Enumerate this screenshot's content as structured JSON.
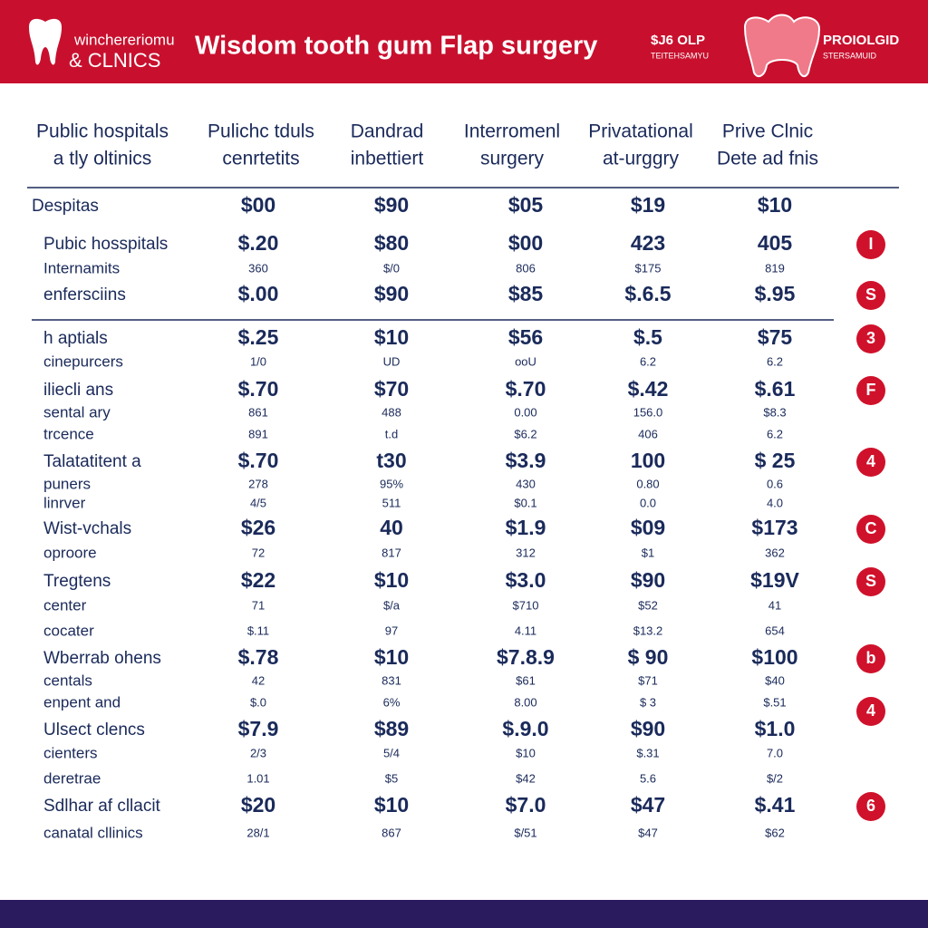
{
  "header": {
    "logo_line1": "winchereriomu",
    "logo_line2": "& CLNICS",
    "title": "Wisdom tooth gum Flap surgery",
    "badge_left": [
      "$J6 OLP",
      "TEITEHSAMYU"
    ],
    "badge_right": [
      "PROIOLGID",
      "STERSAMUID"
    ]
  },
  "table": {
    "columns": [
      [
        "Public hospitals",
        "a tly oltinics"
      ],
      [
        "Pulichc tduls",
        "cenrtetits"
      ],
      [
        "Dandrad",
        "inbettiert"
      ],
      [
        "Interromenl",
        "surgery"
      ],
      [
        "Privatational",
        "at-urggry"
      ],
      [
        "Prive Clnic",
        "Dete ad fnis"
      ]
    ],
    "rows": [
      {
        "label": "Despitas",
        "cells": [
          "$00",
          "$90",
          "$05",
          "$19",
          "$10"
        ]
      },
      {
        "label": "Pubic hosspitals",
        "cells": [
          "$.20",
          "$80",
          "$00",
          "423",
          "405"
        ],
        "badge": "I"
      },
      {
        "label": "Internamits",
        "cells": [
          "360",
          "$/0",
          "806",
          "$175",
          "819"
        ]
      },
      {
        "label": "enfersciins",
        "cells": [
          "$.00",
          "$90",
          "$85",
          "$.6.5",
          "$.95"
        ],
        "badge": "S"
      },
      {
        "label": "h aptials",
        "cells": [
          "$.25",
          "$10",
          "$56",
          "$.5",
          "$75"
        ],
        "badge": "3"
      },
      {
        "label": "cinepurcers",
        "cells": [
          "1/0",
          "UD",
          "ooU",
          "6.2",
          "6.2"
        ]
      },
      {
        "label": "iliecli ans",
        "cells": [
          "$.70",
          "$70",
          "$.70",
          "$.42",
          "$.61"
        ],
        "badge": "F"
      },
      {
        "label": "sental ary",
        "cells": [
          "861",
          "488",
          "0.00",
          "156.0",
          "$8.3"
        ]
      },
      {
        "label": "trcence",
        "cells": [
          "891",
          "t.d",
          "$6.2",
          "406",
          "6.2"
        ]
      },
      {
        "label": "Talatatitent a",
        "cells": [
          "$.70",
          "t30",
          "$3.9",
          "100",
          "$ 25"
        ],
        "badge": "4"
      },
      {
        "label": "puners",
        "cells": [
          "278",
          "95%",
          "430",
          "0.80",
          "0.6"
        ]
      },
      {
        "label": "linrver",
        "cells": [
          "4/5",
          "511",
          "$0.1",
          "0.0",
          "4.0"
        ]
      },
      {
        "label": "Wist-vchals",
        "cells": [
          "$26",
          "40",
          "$1.9",
          "$09",
          "$173"
        ],
        "badge": "C"
      },
      {
        "label": "oproore",
        "cells": [
          "72",
          "817",
          "312",
          "$1",
          "362"
        ]
      },
      {
        "label": "Tregtens",
        "cells": [
          "$22",
          "$10",
          "$3.0",
          "$90",
          "$19V"
        ],
        "badge": "S"
      },
      {
        "label": "center",
        "cells": [
          "71",
          "$/a",
          "$710",
          "$52",
          "41"
        ]
      },
      {
        "label": "cocater",
        "cells": [
          "$.11",
          "97",
          "4.11",
          "$13.2",
          "654"
        ]
      },
      {
        "label": "Wberrab ohens",
        "cells": [
          "$.78",
          "$10",
          "$7.8.9",
          "$ 90",
          "$100"
        ],
        "badge": "b"
      },
      {
        "label": "centals",
        "cells": [
          "42",
          "831",
          "$61",
          "$71",
          "$40"
        ]
      },
      {
        "label": "enpent and",
        "cells": [
          "$.0",
          "6%",
          "8.00",
          "$ 3",
          "$.51"
        ],
        "badge": "4"
      },
      {
        "label": "Ulsect clencs",
        "cells": [
          "$7.9",
          "$89",
          "$.9.0",
          "$90",
          "$1.0"
        ]
      },
      {
        "label": "cienters",
        "cells": [
          "2/3",
          "5/4",
          "$10",
          "$.31",
          "7.0"
        ]
      },
      {
        "label": "deretrae",
        "cells": [
          "1.01",
          "$5",
          "$42",
          "5.6",
          "$/2"
        ]
      },
      {
        "label": "Sdlhar af cllacit",
        "cells": [
          "$20",
          "$10",
          "$7.0",
          "$47",
          "$.41"
        ],
        "badge": "6"
      },
      {
        "label": "canatal cllinics",
        "cells": [
          "28/1",
          "867",
          "$/51",
          "$47",
          "$62"
        ]
      }
    ]
  }
}
